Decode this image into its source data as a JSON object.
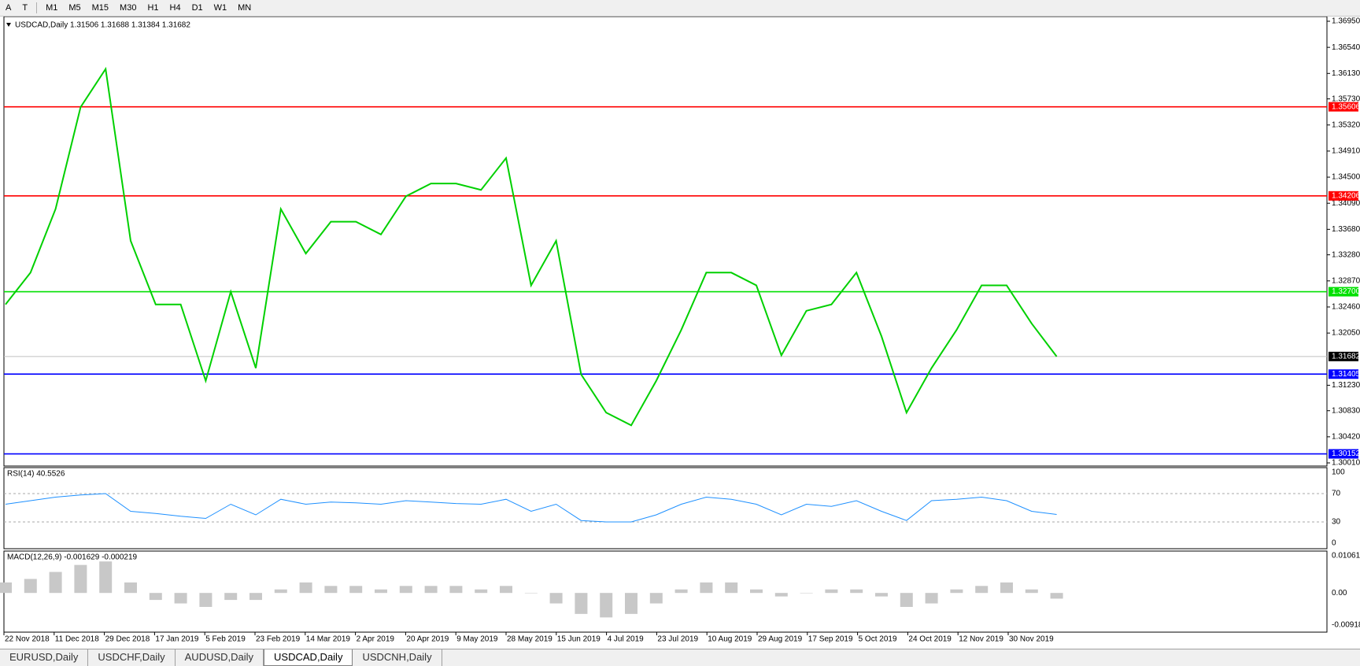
{
  "toolbar": {
    "tools": [
      "A",
      "T"
    ],
    "timeframes": [
      "M1",
      "M5",
      "M15",
      "M30",
      "H1",
      "H4",
      "D1",
      "W1",
      "MN"
    ]
  },
  "chart": {
    "header": "USDCAD,Daily  1.31506 1.31688 1.31384 1.31682",
    "price_ticks": [
      "1.36950",
      "1.36540",
      "1.36130",
      "1.35730",
      "1.35320",
      "1.34910",
      "1.34500",
      "1.34090",
      "1.33680",
      "1.33280",
      "1.32870",
      "1.32460",
      "1.32050",
      "1.31230",
      "1.30830",
      "1.30420",
      "1.30010"
    ],
    "levels": [
      {
        "label": "1.35606",
        "color": "#ff0000"
      },
      {
        "label": "1.34206",
        "color": "#ff0000"
      },
      {
        "label": "1.32700",
        "color": "#00e000"
      },
      {
        "label": "1.31682",
        "color": "#c0c0c0"
      },
      {
        "label": "1.31405",
        "color": "#0000ff"
      },
      {
        "label": "1.30152",
        "color": "#0000ff"
      }
    ],
    "closes": [
      1.325,
      1.33,
      1.34,
      1.356,
      1.362,
      1.335,
      1.325,
      1.325,
      1.313,
      1.327,
      1.315,
      1.34,
      1.333,
      1.338,
      1.338,
      1.336,
      1.342,
      1.344,
      1.344,
      1.343,
      1.348,
      1.328,
      1.335,
      1.314,
      1.308,
      1.306,
      1.313,
      1.321,
      1.33,
      1.33,
      1.328,
      1.317,
      1.324,
      1.325,
      1.33,
      1.32,
      1.308,
      1.315,
      1.321,
      1.328,
      1.328,
      1.322,
      1.31682
    ],
    "dates": [
      "22 Nov 2018",
      "11 Dec 2018",
      "29 Dec 2018",
      "17 Jan 2019",
      "5 Feb 2019",
      "23 Feb 2019",
      "14 Mar 2019",
      "2 Apr 2019",
      "20 Apr 2019",
      "9 May 2019",
      "28 May 2019",
      "15 Jun 2019",
      "4 Jul 2019",
      "23 Jul 2019",
      "10 Aug 2019",
      "29 Aug 2019",
      "17 Sep 2019",
      "5 Oct 2019",
      "24 Oct 2019",
      "12 Nov 2019",
      "30 Nov 2019"
    ]
  },
  "rsi": {
    "header": "RSI(14) 40.5526",
    "ticks": [
      "100",
      "70",
      "30",
      "0"
    ],
    "values": [
      55,
      60,
      65,
      68,
      70,
      45,
      42,
      38,
      35,
      55,
      40,
      62,
      55,
      58,
      57,
      55,
      60,
      58,
      56,
      55,
      62,
      45,
      55,
      32,
      30,
      30,
      40,
      55,
      65,
      62,
      55,
      40,
      55,
      52,
      60,
      45,
      32,
      60,
      62,
      65,
      60,
      45,
      40.5526
    ]
  },
  "macd": {
    "header": "MACD(12,26,9) -0.001629 -0.000219",
    "ticks": [
      "0.010615",
      "0.00",
      "-0.009181"
    ],
    "histogram": [
      0.003,
      0.004,
      0.006,
      0.008,
      0.009,
      0.003,
      -0.002,
      -0.003,
      -0.004,
      -0.002,
      -0.002,
      0.001,
      0.003,
      0.002,
      0.002,
      0.001,
      0.002,
      0.002,
      0.002,
      0.001,
      0.002,
      0.0,
      -0.003,
      -0.006,
      -0.007,
      -0.006,
      -0.003,
      0.001,
      0.003,
      0.003,
      0.001,
      -0.001,
      0.0,
      0.001,
      0.001,
      -0.001,
      -0.004,
      -0.003,
      0.001,
      0.002,
      0.003,
      0.001,
      -0.001629
    ]
  },
  "tabs": [
    "EURUSD,Daily",
    "USDCHF,Daily",
    "AUDUSD,Daily",
    "USDCAD,Daily",
    "USDCNH,Daily"
  ]
}
